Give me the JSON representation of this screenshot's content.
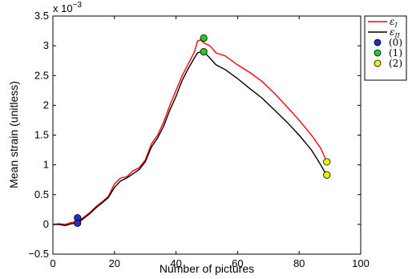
{
  "chart_data": {
    "type": "line",
    "title": "",
    "xlabel": "Number of pictures",
    "ylabel": "Mean strain (unitless)",
    "y_exponent_label": "x 10",
    "y_exponent_power": "−3",
    "xlim": [
      0,
      100
    ],
    "ylim": [
      -0.5,
      3.5
    ],
    "y_scale_factor": 0.001,
    "x_ticks": [
      0,
      20,
      40,
      60,
      80,
      100
    ],
    "y_ticks": [
      -0.5,
      0,
      0.5,
      1,
      1.5,
      2,
      2.5,
      3,
      3.5
    ],
    "x_tick_labels": [
      "0",
      "20",
      "40",
      "60",
      "80",
      "100"
    ],
    "y_tick_labels": [
      "−0.5",
      "0",
      "0.5",
      "1",
      "1.5",
      "2",
      "2.5",
      "3",
      "3.5"
    ],
    "grid": false,
    "legend_position": "outside-top-right",
    "series": [
      {
        "name": "εI",
        "legend_base": "ε",
        "legend_sub": "I",
        "color": "#ff0000",
        "points": [
          [
            0,
            0
          ],
          [
            2,
            0.01
          ],
          [
            4,
            0
          ],
          [
            6,
            0.03
          ],
          [
            8,
            0.05
          ],
          [
            10,
            0.12
          ],
          [
            12,
            0.2
          ],
          [
            14,
            0.3
          ],
          [
            16,
            0.38
          ],
          [
            18,
            0.47
          ],
          [
            20,
            0.68
          ],
          [
            22,
            0.78
          ],
          [
            24,
            0.8
          ],
          [
            26,
            0.9
          ],
          [
            28,
            0.95
          ],
          [
            30,
            1.08
          ],
          [
            32,
            1.35
          ],
          [
            34,
            1.5
          ],
          [
            36,
            1.72
          ],
          [
            38,
            2.0
          ],
          [
            40,
            2.25
          ],
          [
            42,
            2.5
          ],
          [
            44,
            2.7
          ],
          [
            46,
            2.9
          ],
          [
            47,
            3.08
          ],
          [
            48,
            3.1
          ],
          [
            49,
            3.05
          ],
          [
            51,
            3.0
          ],
          [
            53,
            2.88
          ],
          [
            56,
            2.83
          ],
          [
            60,
            2.68
          ],
          [
            64,
            2.55
          ],
          [
            68,
            2.4
          ],
          [
            72,
            2.2
          ],
          [
            76,
            1.98
          ],
          [
            80,
            1.75
          ],
          [
            84,
            1.5
          ],
          [
            87,
            1.28
          ],
          [
            89,
            1.05
          ]
        ]
      },
      {
        "name": "εII",
        "legend_base": "ε",
        "legend_sub": "II",
        "color": "#000000",
        "points": [
          [
            0,
            0
          ],
          [
            2,
            0
          ],
          [
            4,
            -0.02
          ],
          [
            6,
            0.01
          ],
          [
            8,
            0.02
          ],
          [
            10,
            0.1
          ],
          [
            12,
            0.18
          ],
          [
            14,
            0.28
          ],
          [
            16,
            0.36
          ],
          [
            18,
            0.45
          ],
          [
            20,
            0.62
          ],
          [
            22,
            0.73
          ],
          [
            24,
            0.78
          ],
          [
            26,
            0.85
          ],
          [
            28,
            0.92
          ],
          [
            30,
            1.05
          ],
          [
            32,
            1.3
          ],
          [
            34,
            1.45
          ],
          [
            36,
            1.65
          ],
          [
            38,
            1.92
          ],
          [
            40,
            2.15
          ],
          [
            42,
            2.42
          ],
          [
            44,
            2.62
          ],
          [
            46,
            2.8
          ],
          [
            47,
            2.88
          ],
          [
            48,
            2.9
          ],
          [
            49,
            2.88
          ],
          [
            50,
            2.85
          ],
          [
            53,
            2.68
          ],
          [
            56,
            2.6
          ],
          [
            60,
            2.45
          ],
          [
            64,
            2.28
          ],
          [
            68,
            2.12
          ],
          [
            72,
            1.92
          ],
          [
            76,
            1.72
          ],
          [
            80,
            1.5
          ],
          [
            84,
            1.25
          ],
          [
            87,
            1.0
          ],
          [
            89,
            0.82
          ]
        ]
      }
    ],
    "markers": [
      {
        "name": "(0)",
        "color": "#1f2fbf",
        "points": [
          [
            8,
            0.11
          ],
          [
            8,
            0.02
          ]
        ]
      },
      {
        "name": "(1)",
        "color": "#22cc22",
        "points": [
          [
            49,
            3.13
          ],
          [
            49,
            2.9
          ]
        ]
      },
      {
        "name": "(2)",
        "color": "#f2f200",
        "points": [
          [
            89,
            1.05
          ],
          [
            89,
            0.83
          ]
        ]
      }
    ]
  }
}
